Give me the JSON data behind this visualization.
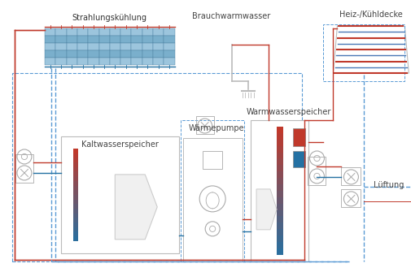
{
  "background_color": "#ffffff",
  "red_color": "#c0392b",
  "blue_color": "#2471a3",
  "light_blue_solar": "#7fb3d3",
  "gray_line": "#999999",
  "gray_box": "#aaaaaa",
  "dashed_blue": "#5b9bd5",
  "dashed_red": "#cc5555",
  "labels": {
    "strahlungskuehlung": "Strahlungskühlung",
    "brauchwarmwasser": "Brauchwarmwasser",
    "heiz_kuehldecke": "Heiz-/Kühldecke",
    "kaltwasserspeicher": "Kaltwasserspeicher",
    "waermepumpe": "Wärmepumpe",
    "warmwasserspeicher": "Warmwasserspeicher",
    "lueftung": "Lüftung"
  },
  "font_size": 7.0
}
